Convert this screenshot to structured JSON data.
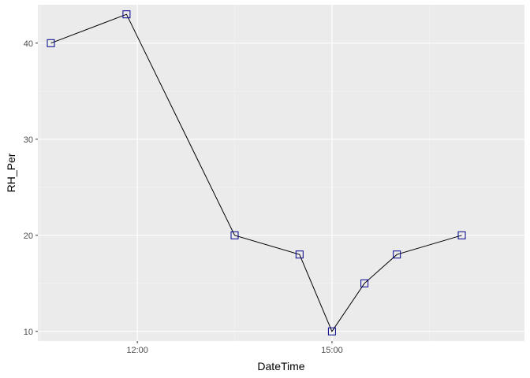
{
  "chart_data": {
    "type": "line",
    "title": "",
    "xlabel": "DateTime",
    "ylabel": "RH_Per",
    "x_axis_type": "time",
    "xlim": [
      "10:28",
      "17:58"
    ],
    "ylim": [
      9,
      44
    ],
    "x_ticks": [
      {
        "value": "12:00",
        "label": "12:00"
      },
      {
        "value": "15:00",
        "label": "15:00"
      }
    ],
    "x_minor_ticks": [
      "10:30",
      "13:30",
      "16:30"
    ],
    "y_ticks": [
      {
        "value": 10,
        "label": "10"
      },
      {
        "value": 20,
        "label": "20"
      },
      {
        "value": 30,
        "label": "30"
      },
      {
        "value": 40,
        "label": "40"
      }
    ],
    "y_minor_ticks": [
      15,
      25,
      35
    ],
    "grid": true,
    "legend": "none",
    "series": [
      {
        "x": [
          "10:40",
          "11:50",
          "13:30",
          "14:30",
          "15:00",
          "15:30",
          "16:00",
          "17:00"
        ],
        "values": [
          40,
          43,
          20,
          18,
          10,
          15,
          18,
          20
        ],
        "line_color": "#000000",
        "marker": "square-open",
        "marker_color": "#00008b"
      }
    ],
    "colors": {
      "panel": "#ebebeb",
      "grid_major": "#ffffff",
      "grid_minor": "#f5f5f5",
      "tick_text": "#4d4d4d",
      "tick_mark": "#333333"
    }
  }
}
